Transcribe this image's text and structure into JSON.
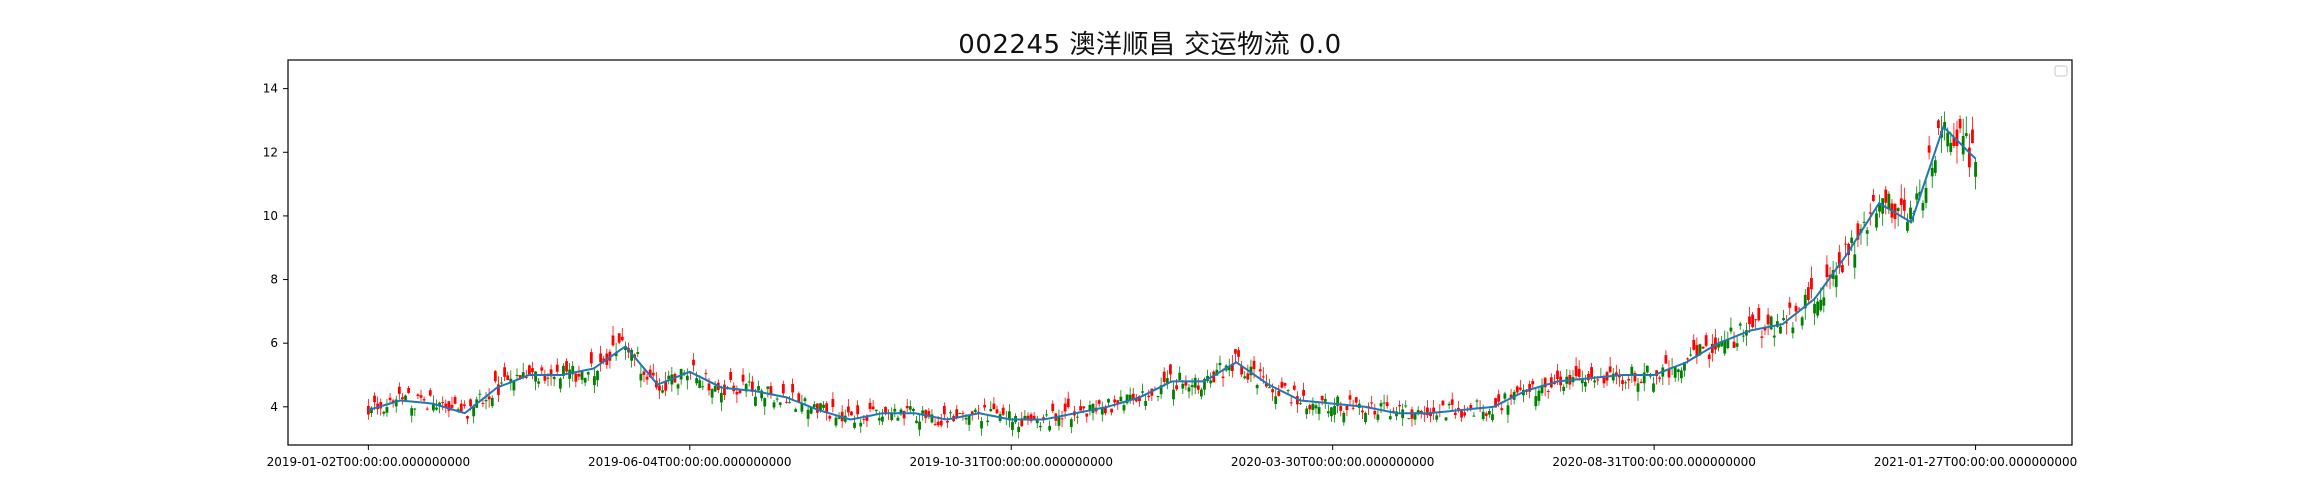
{
  "chart_data": {
    "type": "candlestick",
    "title": "002245 澳洋顺昌 交运物流 0.0",
    "xlabel": "",
    "ylabel": "",
    "ylim": [
      2.8,
      14.9
    ],
    "y_ticks": [
      4,
      6,
      8,
      10,
      12,
      14
    ],
    "x_tick_labels": [
      "2019-01-02T00:00:00.000000000",
      "2019-06-04T00:00:00.000000000",
      "2019-10-31T00:00:00.000000000",
      "2020-03-30T00:00:00.000000000",
      "2020-08-31T00:00:00.000000000",
      "2021-01-27T00:00:00.000000000"
    ],
    "x_tick_positions": [
      0,
      0.2,
      0.4,
      0.6,
      0.8,
      1.0
    ],
    "x_range": [
      -0.05,
      1.06
    ],
    "legend": "top-right",
    "grid": false,
    "colors": {
      "up": "#ff0000",
      "down": "#008000",
      "moving_average": "#1f77b4",
      "axis": "#000000"
    },
    "series": [
      {
        "kind": "moving_average",
        "x": [
          0.0,
          0.02,
          0.04,
          0.06,
          0.08,
          0.1,
          0.12,
          0.14,
          0.16,
          0.18,
          0.2,
          0.22,
          0.24,
          0.26,
          0.28,
          0.3,
          0.32,
          0.34,
          0.36,
          0.38,
          0.4,
          0.42,
          0.44,
          0.46,
          0.48,
          0.5,
          0.52,
          0.54,
          0.56,
          0.58,
          0.6,
          0.62,
          0.64,
          0.66,
          0.68,
          0.7,
          0.72,
          0.74,
          0.76,
          0.78,
          0.8,
          0.82,
          0.84,
          0.86,
          0.88,
          0.9,
          0.92,
          0.94,
          0.96,
          0.98,
          1.0
        ],
        "values": [
          3.9,
          4.2,
          4.1,
          3.8,
          4.6,
          5.0,
          5.0,
          5.2,
          5.9,
          4.7,
          5.1,
          4.6,
          4.5,
          4.3,
          3.9,
          3.6,
          3.8,
          3.8,
          3.6,
          3.8,
          3.6,
          3.6,
          3.8,
          4.0,
          4.3,
          4.8,
          4.8,
          5.4,
          4.7,
          4.2,
          4.1,
          4.0,
          3.8,
          3.8,
          3.9,
          4.0,
          4.5,
          4.8,
          4.9,
          5.0,
          5.0,
          5.4,
          6.0,
          6.4,
          6.6,
          7.4,
          8.8,
          10.4,
          9.8,
          12.8,
          11.8
        ]
      }
    ],
    "candle_count": 520
  }
}
